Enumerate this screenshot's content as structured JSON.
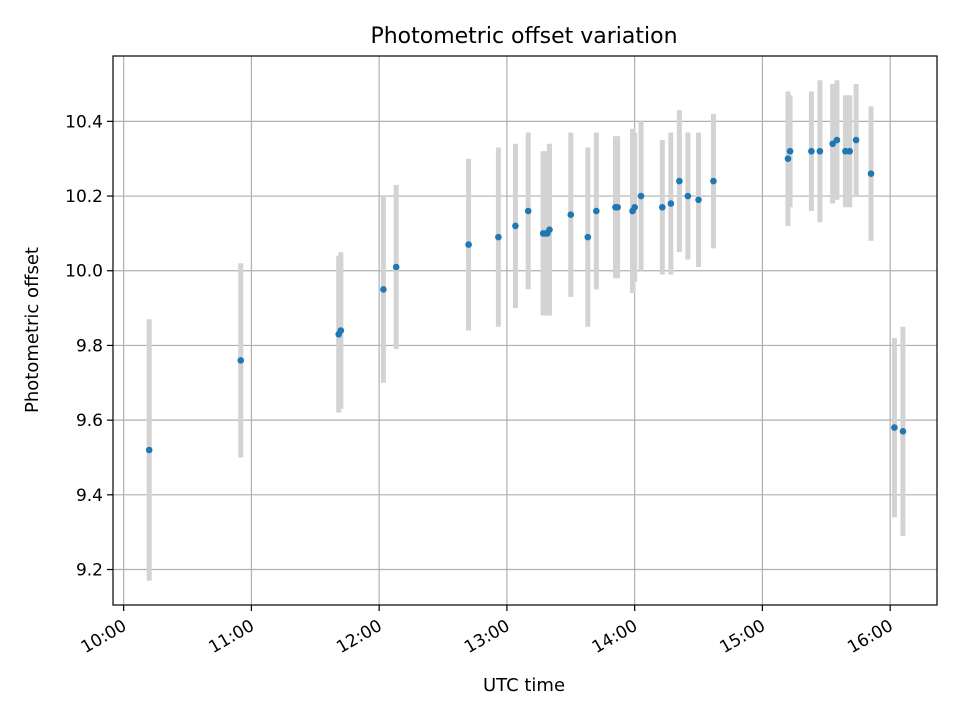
{
  "chart_data": {
    "type": "scatter",
    "title": "Photometric offset variation",
    "xlabel": "UTC time",
    "ylabel": "Photometric offset",
    "xlim": [
      "09:55",
      "16:22"
    ],
    "ylim": [
      9.105,
      10.575
    ],
    "x_ticks": [
      "10:00",
      "11:00",
      "12:00",
      "13:00",
      "14:00",
      "15:00",
      "16:00"
    ],
    "y_ticks": [
      9.2,
      9.4,
      9.6,
      9.8,
      10.0,
      10.2,
      10.4
    ],
    "y_tick_labels": [
      "9.2",
      "9.4",
      "9.6",
      "9.8",
      "10.0",
      "10.2",
      "10.4"
    ],
    "grid": true,
    "colors": {
      "point": "#1f77b4",
      "errorbar": "#d3d3d3"
    },
    "series": [
      {
        "points": [
          {
            "x": "10:12",
            "y": 9.52,
            "err": 0.35
          },
          {
            "x": "10:55",
            "y": 9.76,
            "err": 0.26
          },
          {
            "x": "11:41",
            "y": 9.83,
            "err": 0.21
          },
          {
            "x": "11:42",
            "y": 9.84,
            "err": 0.21
          },
          {
            "x": "12:02",
            "y": 9.95,
            "err": 0.25
          },
          {
            "x": "12:08",
            "y": 10.01,
            "err": 0.22
          },
          {
            "x": "12:42",
            "y": 10.07,
            "err": 0.23
          },
          {
            "x": "12:56",
            "y": 10.09,
            "err": 0.24
          },
          {
            "x": "13:04",
            "y": 10.12,
            "err": 0.22
          },
          {
            "x": "13:10",
            "y": 10.16,
            "err": 0.21
          },
          {
            "x": "13:17",
            "y": 10.1,
            "err": 0.22
          },
          {
            "x": "13:18",
            "y": 10.1,
            "err": 0.22
          },
          {
            "x": "13:19",
            "y": 10.1,
            "err": 0.22
          },
          {
            "x": "13:20",
            "y": 10.11,
            "err": 0.23
          },
          {
            "x": "13:30",
            "y": 10.15,
            "err": 0.22
          },
          {
            "x": "13:38",
            "y": 10.09,
            "err": 0.24
          },
          {
            "x": "13:42",
            "y": 10.16,
            "err": 0.21
          },
          {
            "x": "13:51",
            "y": 10.17,
            "err": 0.19
          },
          {
            "x": "13:52",
            "y": 10.17,
            "err": 0.19
          },
          {
            "x": "13:59",
            "y": 10.16,
            "err": 0.22
          },
          {
            "x": "14:00",
            "y": 10.17,
            "err": 0.2
          },
          {
            "x": "14:03",
            "y": 10.2,
            "err": 0.2
          },
          {
            "x": "14:13",
            "y": 10.17,
            "err": 0.18
          },
          {
            "x": "14:17",
            "y": 10.18,
            "err": 0.19
          },
          {
            "x": "14:21",
            "y": 10.24,
            "err": 0.19
          },
          {
            "x": "14:25",
            "y": 10.2,
            "err": 0.17
          },
          {
            "x": "14:30",
            "y": 10.19,
            "err": 0.18
          },
          {
            "x": "14:37",
            "y": 10.24,
            "err": 0.18
          },
          {
            "x": "15:12",
            "y": 10.3,
            "err": 0.18
          },
          {
            "x": "15:13",
            "y": 10.32,
            "err": 0.15
          },
          {
            "x": "15:23",
            "y": 10.32,
            "err": 0.16
          },
          {
            "x": "15:27",
            "y": 10.32,
            "err": 0.19
          },
          {
            "x": "15:33",
            "y": 10.34,
            "err": 0.16
          },
          {
            "x": "15:35",
            "y": 10.35,
            "err": 0.16
          },
          {
            "x": "15:39",
            "y": 10.32,
            "err": 0.15
          },
          {
            "x": "15:41",
            "y": 10.32,
            "err": 0.15
          },
          {
            "x": "15:44",
            "y": 10.35,
            "err": 0.15
          },
          {
            "x": "15:51",
            "y": 10.26,
            "err": 0.18
          },
          {
            "x": "16:02",
            "y": 9.58,
            "err": 0.24
          },
          {
            "x": "16:06",
            "y": 9.57,
            "err": 0.28
          }
        ]
      }
    ]
  }
}
